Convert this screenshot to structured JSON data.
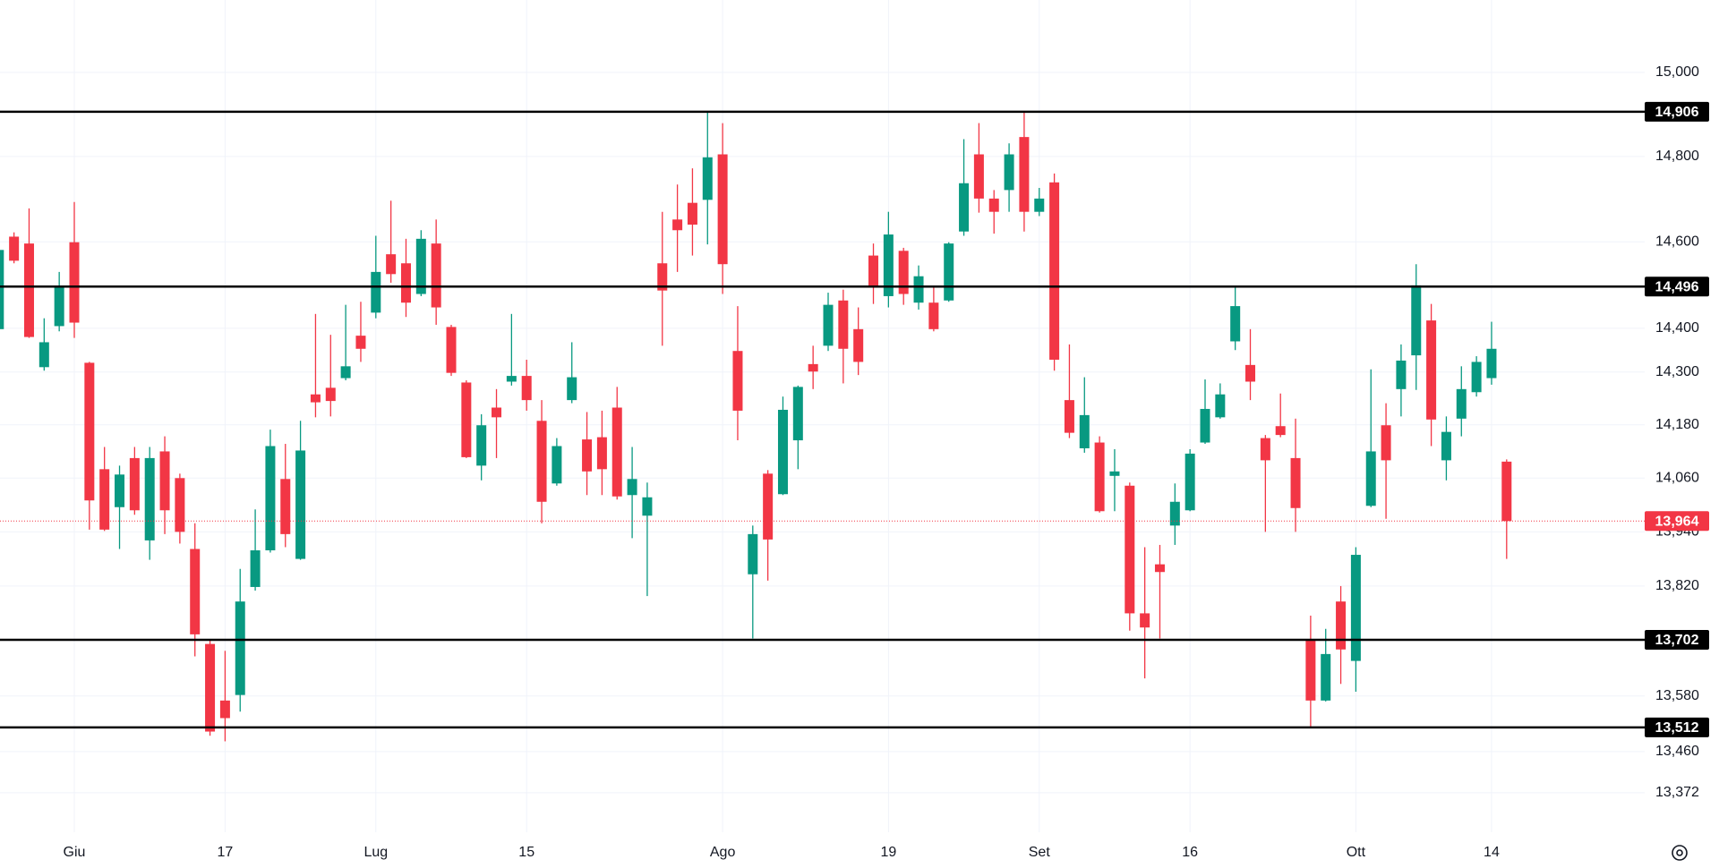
{
  "chart_data": {
    "type": "candlestick",
    "log_scale": true,
    "grid": true,
    "up_color": "#089981",
    "down_color": "#f23645",
    "categories": [
      null,
      null,
      null,
      null,
      null,
      "Giu",
      null,
      null,
      null,
      null,
      null,
      null,
      null,
      null,
      null,
      "17",
      null,
      null,
      null,
      null,
      null,
      null,
      null,
      null,
      null,
      "Lug",
      null,
      null,
      null,
      null,
      null,
      null,
      null,
      null,
      null,
      "15",
      null,
      null,
      null,
      null,
      null,
      null,
      null,
      null,
      null,
      null,
      null,
      null,
      "Ago",
      null,
      null,
      null,
      null,
      null,
      null,
      null,
      null,
      null,
      null,
      "19",
      null,
      null,
      null,
      null,
      null,
      null,
      null,
      null,
      null,
      "Set",
      null,
      null,
      null,
      null,
      null,
      null,
      null,
      null,
      null,
      "16",
      null,
      null,
      null,
      null,
      null,
      null,
      null,
      null,
      null,
      null,
      "Ott",
      null,
      null,
      null,
      null,
      null,
      null,
      null,
      null,
      "14",
      null
    ],
    "open": [
      14398,
      14612,
      14596,
      14311,
      14405,
      14599,
      14321,
      14080,
      13995,
      14105,
      13921,
      14120,
      14060,
      13902,
      13693,
      13570,
      13582,
      13818,
      13899,
      14058,
      13880,
      14249,
      14264,
      14286,
      14383,
      14436,
      14571,
      14550,
      14479,
      14596,
      14403,
      14276,
      14088,
      14219,
      14278,
      14291,
      14189,
      14048,
      14236,
      14147,
      14152,
      14219,
      14022,
      13976,
      14550,
      14652,
      14691,
      14698,
      14805,
      14348,
      13846,
      14070,
      14024,
      14145,
      14318,
      14360,
      14464,
      14398,
      14568,
      14474,
      14579,
      14459,
      14459,
      14464,
      14624,
      14805,
      14701,
      14721,
      14846,
      14670,
      14739,
      14236,
      14127,
      14140,
      14065,
      14043,
      13760,
      13868,
      13954,
      13988,
      14140,
      14197,
      14370,
      14316,
      14150,
      14177,
      14105,
      13702,
      13570,
      13786,
      13656,
      13998,
      14179,
      14261,
      14338,
      14418,
      14100,
      14194,
      14254,
      14286,
      14097
    ],
    "high": [
      14614,
      14622,
      14678,
      14423,
      14530,
      14693,
      14323,
      14130,
      14088,
      14130,
      14130,
      14154,
      14070,
      13959,
      13702,
      13678,
      13858,
      13990,
      14169,
      14137,
      14189,
      14433,
      14385,
      14454,
      14461,
      14614,
      14696,
      14607,
      14627,
      14652,
      14408,
      14281,
      14204,
      14261,
      14433,
      14328,
      14236,
      14150,
      14368,
      14209,
      14212,
      14266,
      14130,
      14050,
      14670,
      14734,
      14772,
      14907,
      14879,
      14451,
      13954,
      14078,
      14244,
      14269,
      14360,
      14482,
      14489,
      14448,
      14596,
      14670,
      14586,
      14545,
      14494,
      14599,
      14841,
      14879,
      14721,
      14831,
      14907,
      14726,
      14760,
      14363,
      14288,
      14154,
      14125,
      14050,
      13906,
      13911,
      14048,
      14125,
      14283,
      14274,
      14494,
      14398,
      14157,
      14251,
      14194,
      13755,
      13726,
      13820,
      13906,
      14306,
      14229,
      14363,
      14548,
      14456,
      14199,
      14313,
      14336,
      14415,
      14102
    ],
    "low": [
      14393,
      14550,
      14378,
      14303,
      14393,
      14378,
      13945,
      13942,
      13902,
      13978,
      13878,
      13935,
      13914,
      13666,
      13494,
      13482,
      13546,
      13810,
      13894,
      13906,
      13878,
      14197,
      14199,
      14281,
      14323,
      14423,
      14505,
      14426,
      14474,
      14408,
      14291,
      14105,
      14055,
      14105,
      14269,
      14212,
      13959,
      14043,
      14229,
      14022,
      14022,
      14012,
      13926,
      13798,
      14360,
      14530,
      14568,
      14594,
      14479,
      14145,
      13705,
      13832,
      14022,
      14080,
      14261,
      14348,
      14274,
      14293,
      14456,
      14448,
      14454,
      14443,
      14393,
      14461,
      14614,
      14668,
      14619,
      14670,
      14624,
      14660,
      14303,
      14150,
      14117,
      13983,
      13986,
      13722,
      13618,
      13705,
      13911,
      13986,
      14137,
      14194,
      14350,
      14236,
      13940,
      14152,
      13940,
      13510,
      13568,
      13606,
      13589,
      13995,
      13969,
      14199,
      14259,
      14132,
      14055,
      14154,
      14244,
      14271,
      13880
    ],
    "close": [
      14581,
      14556,
      14380,
      14368,
      14494,
      14413,
      14010,
      13945,
      14068,
      13988,
      14105,
      13988,
      13940,
      13714,
      13503,
      13532,
      13786,
      13899,
      14132,
      13935,
      14122,
      14231,
      14234,
      14313,
      14353,
      14530,
      14525,
      14459,
      14607,
      14448,
      14298,
      14107,
      14179,
      14197,
      14291,
      14236,
      14007,
      14132,
      14288,
      14075,
      14080,
      14019,
      14058,
      14017,
      14487,
      14627,
      14640,
      14798,
      14548,
      14212,
      13935,
      13923,
      14214,
      14266,
      14301,
      14454,
      14353,
      14323,
      14494,
      14617,
      14479,
      14520,
      14398,
      14596,
      14737,
      14701,
      14670,
      14805,
      14670,
      14701,
      14328,
      14162,
      14202,
      13986,
      14075,
      13760,
      13729,
      13851,
      14007,
      14115,
      14216,
      14249,
      14451,
      14278,
      14100,
      14157,
      13993,
      13570,
      13671,
      13681,
      13889,
      14120,
      14100,
      14326,
      14499,
      14192,
      14164,
      14261,
      14323,
      14353,
      13964
    ],
    "ylim": [
      13288,
      15174
    ],
    "yticks": [
      {
        "value": 15000,
        "label": "15,000"
      },
      {
        "value": 14800,
        "label": "14,800"
      },
      {
        "value": 14600,
        "label": "14,600"
      },
      {
        "value": 14400,
        "label": "14,400"
      },
      {
        "value": 14300,
        "label": "14,300"
      },
      {
        "value": 14180,
        "label": "14,180"
      },
      {
        "value": 14060,
        "label": "14,060"
      },
      {
        "value": 13940,
        "label": "13,940"
      },
      {
        "value": 13820,
        "label": "13,820"
      },
      {
        "value": 13580,
        "label": "13,580"
      },
      {
        "value": 13460,
        "label": "13,460"
      },
      {
        "value": 13372,
        "label": "13,372"
      }
    ],
    "hlines": [
      {
        "value": 14906,
        "label": "14,906"
      },
      {
        "value": 14496,
        "label": "14,496"
      },
      {
        "value": 13702,
        "label": "13,702"
      },
      {
        "value": 13512,
        "label": "13,512"
      }
    ],
    "hline_color": "#000000",
    "current_price": {
      "value": 13964,
      "label": "13,964"
    }
  }
}
